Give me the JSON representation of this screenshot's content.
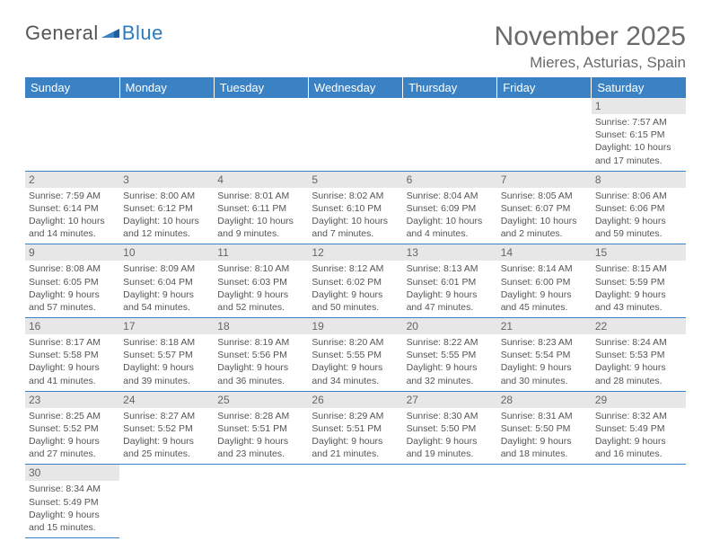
{
  "logo": {
    "part1": "General",
    "part2": "Blue"
  },
  "title": "November 2025",
  "location": "Mieres, Asturias, Spain",
  "colors": {
    "header_bg": "#3a82c4",
    "header_text": "#ffffff",
    "daynum_bg": "#e7e7e7",
    "text": "#555555",
    "rule": "#3a82c4",
    "logo_accent": "#2b7bbf"
  },
  "fonts": {
    "title_size": 30,
    "location_size": 17,
    "header_size": 13,
    "cell_size": 10.5
  },
  "day_headers": [
    "Sunday",
    "Monday",
    "Tuesday",
    "Wednesday",
    "Thursday",
    "Friday",
    "Saturday"
  ],
  "weeks": [
    [
      null,
      null,
      null,
      null,
      null,
      null,
      {
        "n": "1",
        "sr": "Sunrise: 7:57 AM",
        "ss": "Sunset: 6:15 PM",
        "d1": "Daylight: 10 hours",
        "d2": "and 17 minutes."
      }
    ],
    [
      {
        "n": "2",
        "sr": "Sunrise: 7:59 AM",
        "ss": "Sunset: 6:14 PM",
        "d1": "Daylight: 10 hours",
        "d2": "and 14 minutes."
      },
      {
        "n": "3",
        "sr": "Sunrise: 8:00 AM",
        "ss": "Sunset: 6:12 PM",
        "d1": "Daylight: 10 hours",
        "d2": "and 12 minutes."
      },
      {
        "n": "4",
        "sr": "Sunrise: 8:01 AM",
        "ss": "Sunset: 6:11 PM",
        "d1": "Daylight: 10 hours",
        "d2": "and 9 minutes."
      },
      {
        "n": "5",
        "sr": "Sunrise: 8:02 AM",
        "ss": "Sunset: 6:10 PM",
        "d1": "Daylight: 10 hours",
        "d2": "and 7 minutes."
      },
      {
        "n": "6",
        "sr": "Sunrise: 8:04 AM",
        "ss": "Sunset: 6:09 PM",
        "d1": "Daylight: 10 hours",
        "d2": "and 4 minutes."
      },
      {
        "n": "7",
        "sr": "Sunrise: 8:05 AM",
        "ss": "Sunset: 6:07 PM",
        "d1": "Daylight: 10 hours",
        "d2": "and 2 minutes."
      },
      {
        "n": "8",
        "sr": "Sunrise: 8:06 AM",
        "ss": "Sunset: 6:06 PM",
        "d1": "Daylight: 9 hours",
        "d2": "and 59 minutes."
      }
    ],
    [
      {
        "n": "9",
        "sr": "Sunrise: 8:08 AM",
        "ss": "Sunset: 6:05 PM",
        "d1": "Daylight: 9 hours",
        "d2": "and 57 minutes."
      },
      {
        "n": "10",
        "sr": "Sunrise: 8:09 AM",
        "ss": "Sunset: 6:04 PM",
        "d1": "Daylight: 9 hours",
        "d2": "and 54 minutes."
      },
      {
        "n": "11",
        "sr": "Sunrise: 8:10 AM",
        "ss": "Sunset: 6:03 PM",
        "d1": "Daylight: 9 hours",
        "d2": "and 52 minutes."
      },
      {
        "n": "12",
        "sr": "Sunrise: 8:12 AM",
        "ss": "Sunset: 6:02 PM",
        "d1": "Daylight: 9 hours",
        "d2": "and 50 minutes."
      },
      {
        "n": "13",
        "sr": "Sunrise: 8:13 AM",
        "ss": "Sunset: 6:01 PM",
        "d1": "Daylight: 9 hours",
        "d2": "and 47 minutes."
      },
      {
        "n": "14",
        "sr": "Sunrise: 8:14 AM",
        "ss": "Sunset: 6:00 PM",
        "d1": "Daylight: 9 hours",
        "d2": "and 45 minutes."
      },
      {
        "n": "15",
        "sr": "Sunrise: 8:15 AM",
        "ss": "Sunset: 5:59 PM",
        "d1": "Daylight: 9 hours",
        "d2": "and 43 minutes."
      }
    ],
    [
      {
        "n": "16",
        "sr": "Sunrise: 8:17 AM",
        "ss": "Sunset: 5:58 PM",
        "d1": "Daylight: 9 hours",
        "d2": "and 41 minutes."
      },
      {
        "n": "17",
        "sr": "Sunrise: 8:18 AM",
        "ss": "Sunset: 5:57 PM",
        "d1": "Daylight: 9 hours",
        "d2": "and 39 minutes."
      },
      {
        "n": "18",
        "sr": "Sunrise: 8:19 AM",
        "ss": "Sunset: 5:56 PM",
        "d1": "Daylight: 9 hours",
        "d2": "and 36 minutes."
      },
      {
        "n": "19",
        "sr": "Sunrise: 8:20 AM",
        "ss": "Sunset: 5:55 PM",
        "d1": "Daylight: 9 hours",
        "d2": "and 34 minutes."
      },
      {
        "n": "20",
        "sr": "Sunrise: 8:22 AM",
        "ss": "Sunset: 5:55 PM",
        "d1": "Daylight: 9 hours",
        "d2": "and 32 minutes."
      },
      {
        "n": "21",
        "sr": "Sunrise: 8:23 AM",
        "ss": "Sunset: 5:54 PM",
        "d1": "Daylight: 9 hours",
        "d2": "and 30 minutes."
      },
      {
        "n": "22",
        "sr": "Sunrise: 8:24 AM",
        "ss": "Sunset: 5:53 PM",
        "d1": "Daylight: 9 hours",
        "d2": "and 28 minutes."
      }
    ],
    [
      {
        "n": "23",
        "sr": "Sunrise: 8:25 AM",
        "ss": "Sunset: 5:52 PM",
        "d1": "Daylight: 9 hours",
        "d2": "and 27 minutes."
      },
      {
        "n": "24",
        "sr": "Sunrise: 8:27 AM",
        "ss": "Sunset: 5:52 PM",
        "d1": "Daylight: 9 hours",
        "d2": "and 25 minutes."
      },
      {
        "n": "25",
        "sr": "Sunrise: 8:28 AM",
        "ss": "Sunset: 5:51 PM",
        "d1": "Daylight: 9 hours",
        "d2": "and 23 minutes."
      },
      {
        "n": "26",
        "sr": "Sunrise: 8:29 AM",
        "ss": "Sunset: 5:51 PM",
        "d1": "Daylight: 9 hours",
        "d2": "and 21 minutes."
      },
      {
        "n": "27",
        "sr": "Sunrise: 8:30 AM",
        "ss": "Sunset: 5:50 PM",
        "d1": "Daylight: 9 hours",
        "d2": "and 19 minutes."
      },
      {
        "n": "28",
        "sr": "Sunrise: 8:31 AM",
        "ss": "Sunset: 5:50 PM",
        "d1": "Daylight: 9 hours",
        "d2": "and 18 minutes."
      },
      {
        "n": "29",
        "sr": "Sunrise: 8:32 AM",
        "ss": "Sunset: 5:49 PM",
        "d1": "Daylight: 9 hours",
        "d2": "and 16 minutes."
      }
    ],
    [
      {
        "n": "30",
        "sr": "Sunrise: 8:34 AM",
        "ss": "Sunset: 5:49 PM",
        "d1": "Daylight: 9 hours",
        "d2": "and 15 minutes."
      },
      null,
      null,
      null,
      null,
      null,
      null
    ]
  ]
}
